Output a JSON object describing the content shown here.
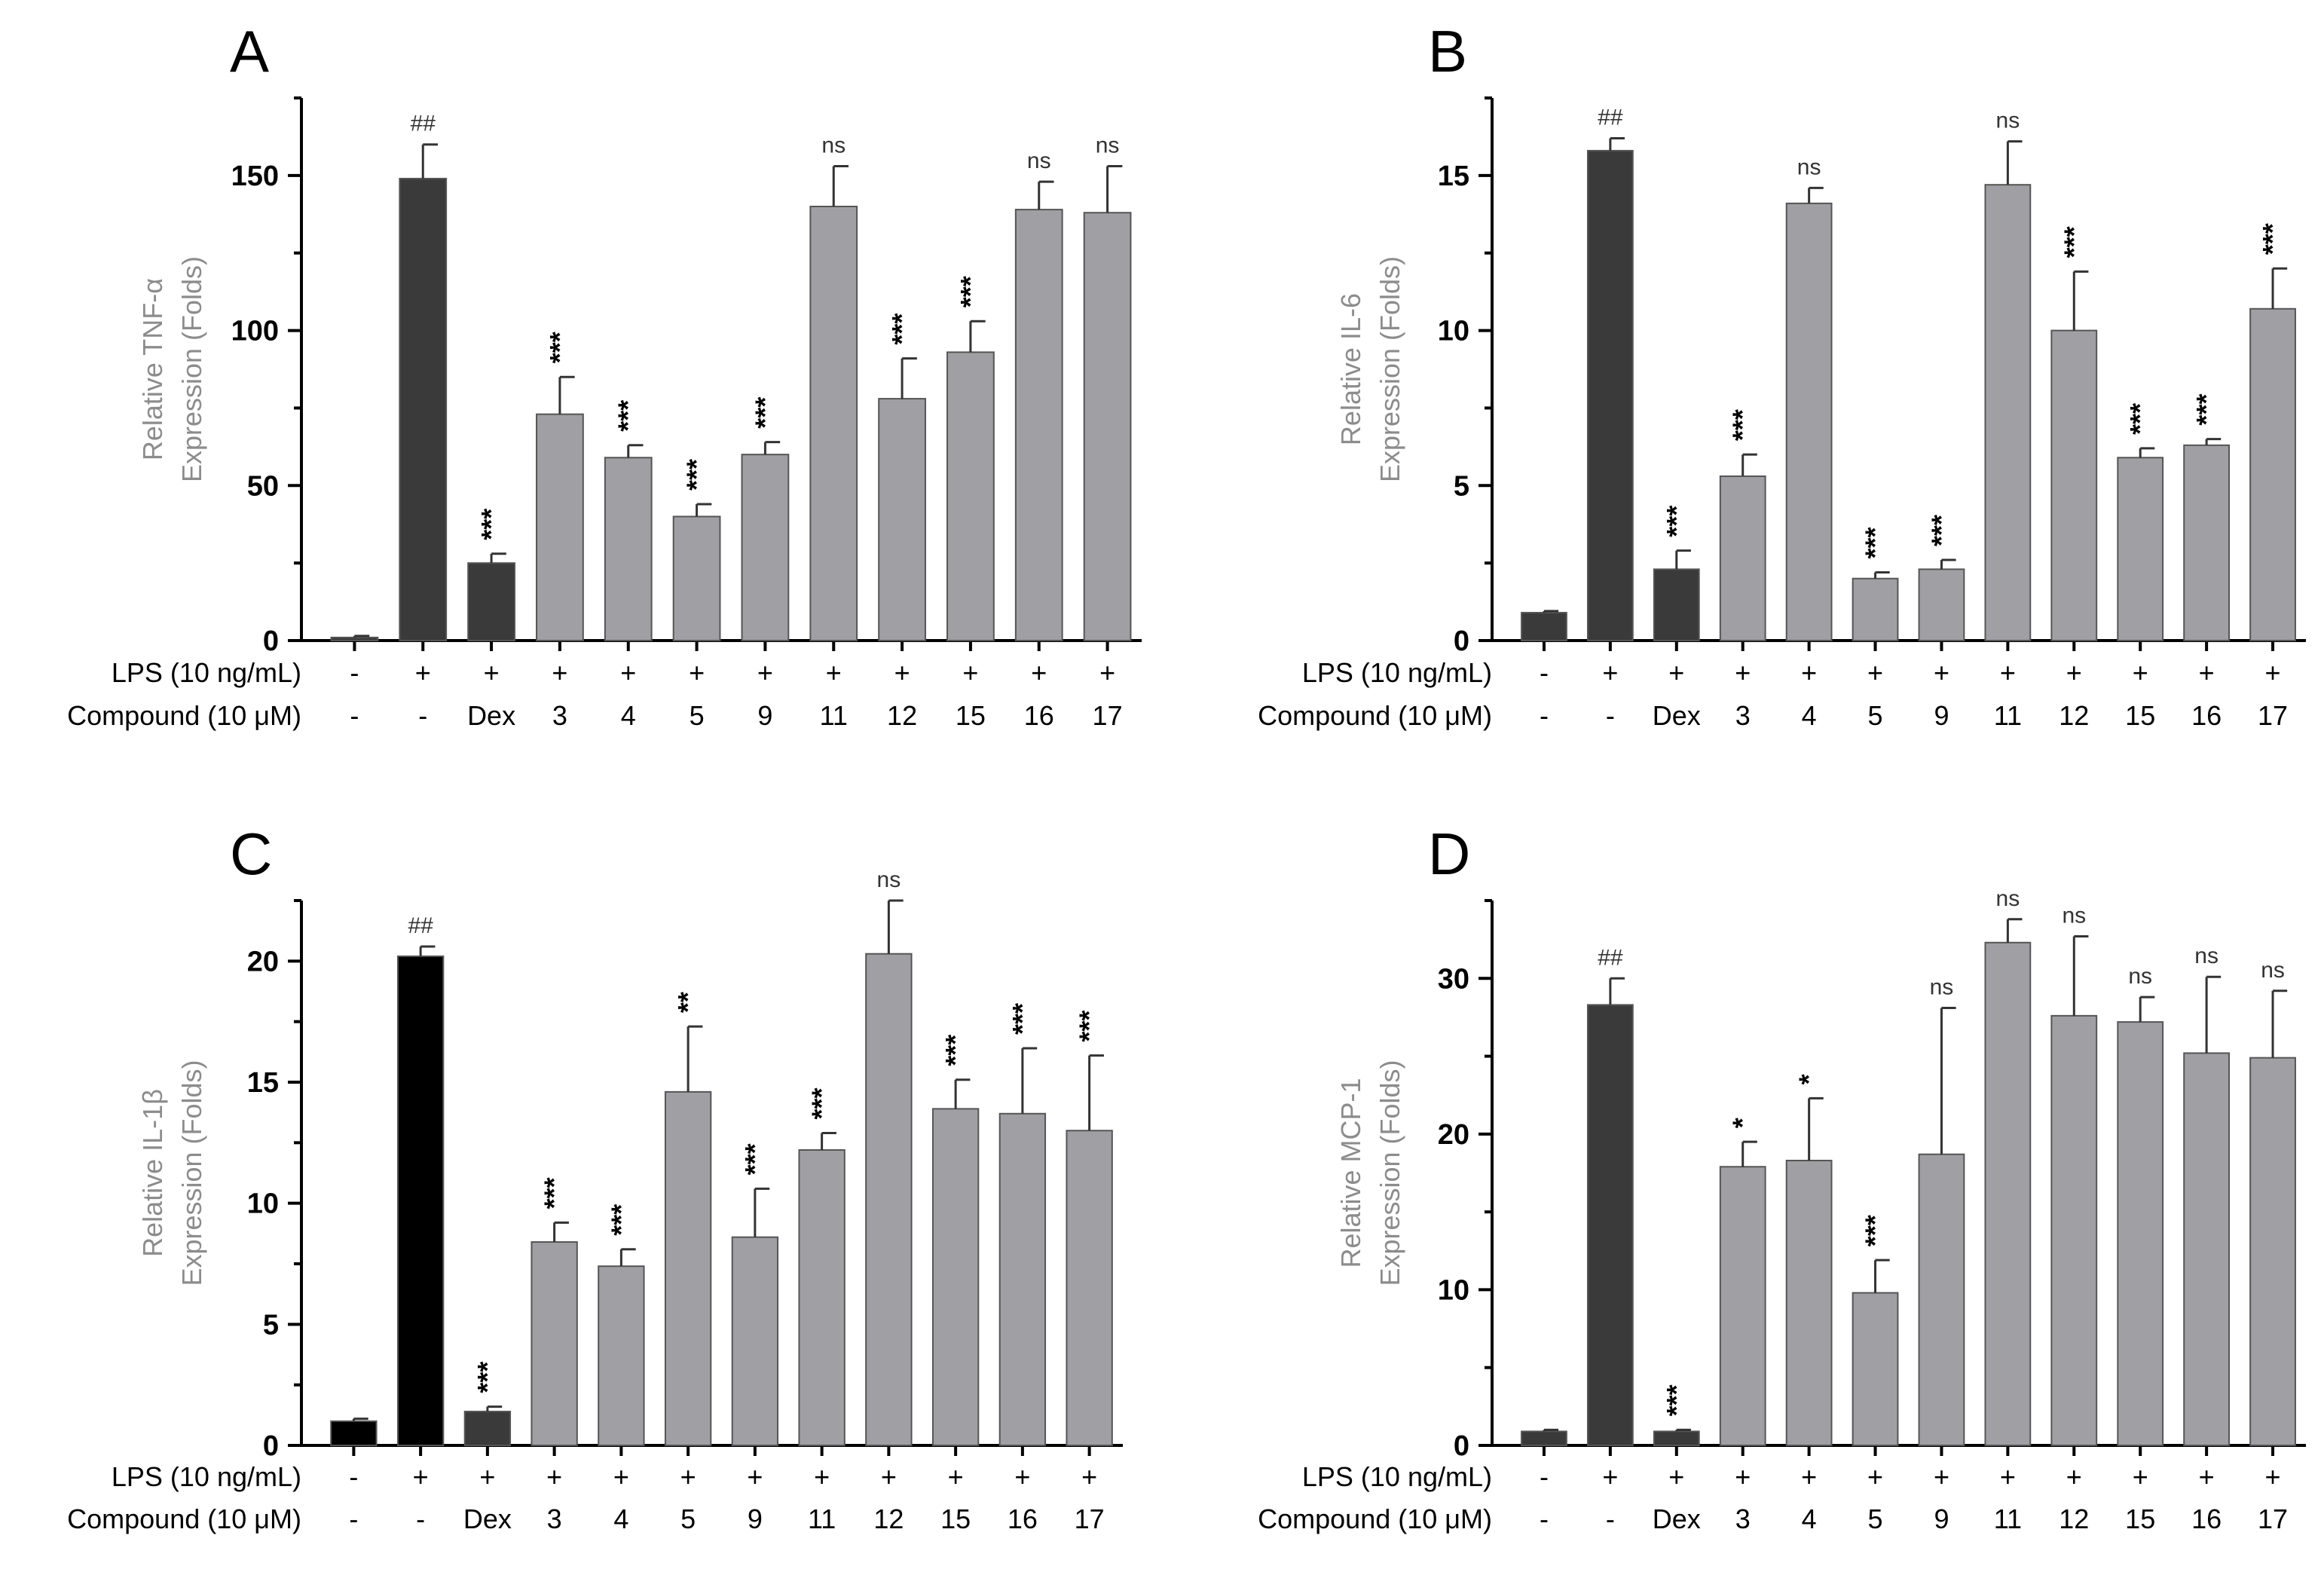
{
  "row_labels": {
    "lps": "LPS (10 ng/mL)",
    "compound": "Compound (10 μM)"
  },
  "chart_data": [
    {
      "type": "bar",
      "panel_letter": "A",
      "ylabel_line1": "Relative TNF-α",
      "ylabel_line2": "Expression (Folds)",
      "ylim": [
        0,
        175
      ],
      "yticks": [
        0,
        50,
        100,
        150
      ],
      "categories": [
        "-",
        "-",
        "Dex",
        "3",
        "4",
        "5",
        "9",
        "11",
        "12",
        "15",
        "16",
        "17"
      ],
      "lps": [
        "-",
        "+",
        "+",
        "+",
        "+",
        "+",
        "+",
        "+",
        "+",
        "+",
        "+",
        "+"
      ],
      "values": [
        1,
        149,
        25,
        73,
        59,
        40,
        60,
        140,
        78,
        93,
        139,
        138
      ],
      "errors": [
        0.5,
        11,
        3,
        12,
        4,
        4,
        4,
        13,
        13,
        10,
        9,
        15
      ],
      "annotations": [
        "",
        "##",
        "***",
        "***",
        "***",
        "***",
        "***",
        "ns",
        "***",
        "***",
        "ns",
        "ns"
      ],
      "bar_colors": [
        "#3a3a3a",
        "#3a3a3a",
        "#3a3a3a",
        "#a0a0a4",
        "#a0a0a4",
        "#a0a0a4",
        "#a0a0a4",
        "#a0a0a4",
        "#a0a0a4",
        "#a0a0a4",
        "#a0a0a4",
        "#a0a0a4"
      ]
    },
    {
      "type": "bar",
      "panel_letter": "B",
      "ylabel_line1": "Relative IL-6",
      "ylabel_line2": "Expression (Folds)",
      "ylim": [
        0,
        17.5
      ],
      "yticks": [
        0,
        5,
        10,
        15
      ],
      "categories": [
        "-",
        "-",
        "Dex",
        "3",
        "4",
        "5",
        "9",
        "11",
        "12",
        "15",
        "16",
        "17"
      ],
      "lps": [
        "-",
        "+",
        "+",
        "+",
        "+",
        "+",
        "+",
        "+",
        "+",
        "+",
        "+",
        "+"
      ],
      "values": [
        0.9,
        15.8,
        2.3,
        5.3,
        14.1,
        2.0,
        2.3,
        14.7,
        10.0,
        5.9,
        6.3,
        10.7
      ],
      "errors": [
        0.05,
        0.4,
        0.6,
        0.7,
        0.5,
        0.2,
        0.3,
        1.4,
        1.9,
        0.3,
        0.2,
        1.3
      ],
      "annotations": [
        "",
        "##",
        "***",
        "***",
        "ns",
        "***",
        "***",
        "ns",
        "***",
        "***",
        "***",
        "***"
      ],
      "bar_colors": [
        "#3a3a3a",
        "#3a3a3a",
        "#3a3a3a",
        "#a0a0a4",
        "#a0a0a4",
        "#a0a0a4",
        "#a0a0a4",
        "#a0a0a4",
        "#a0a0a4",
        "#a0a0a4",
        "#a0a0a4",
        "#a0a0a4"
      ]
    },
    {
      "type": "bar",
      "panel_letter": "C",
      "ylabel_line1": "Relative IL-1β",
      "ylabel_line2": "Expression (Folds)",
      "ylim": [
        0,
        22.5
      ],
      "yticks": [
        0,
        5,
        10,
        15,
        20
      ],
      "categories": [
        "-",
        "-",
        "Dex",
        "3",
        "4",
        "5",
        "9",
        "11",
        "12",
        "15",
        "16",
        "17"
      ],
      "lps": [
        "-",
        "+",
        "+",
        "+",
        "+",
        "+",
        "+",
        "+",
        "+",
        "+",
        "+",
        "+"
      ],
      "values": [
        1.0,
        20.2,
        1.4,
        8.4,
        7.4,
        14.6,
        8.6,
        12.2,
        20.3,
        13.9,
        13.7,
        13.0
      ],
      "errors": [
        0.1,
        0.4,
        0.2,
        0.8,
        0.7,
        2.7,
        2.0,
        0.7,
        2.2,
        1.2,
        2.7,
        3.1
      ],
      "annotations": [
        "",
        "##",
        "***",
        "***",
        "***",
        "**",
        "***",
        "***",
        "ns",
        "***",
        "***",
        "***"
      ],
      "bar_colors": [
        "#000000",
        "#000000",
        "#3a3a3a",
        "#a0a0a4",
        "#a0a0a4",
        "#a0a0a4",
        "#a0a0a4",
        "#a0a0a4",
        "#a0a0a4",
        "#a0a0a4",
        "#a0a0a4",
        "#a0a0a4"
      ]
    },
    {
      "type": "bar",
      "panel_letter": "D",
      "ylabel_line1": "Relative MCP-1",
      "ylabel_line2": "Expression (Folds)",
      "ylim": [
        0,
        35
      ],
      "yticks": [
        0,
        10,
        20,
        30
      ],
      "categories": [
        "-",
        "-",
        "Dex",
        "3",
        "4",
        "5",
        "9",
        "11",
        "12",
        "15",
        "16",
        "17"
      ],
      "lps": [
        "-",
        "+",
        "+",
        "+",
        "+",
        "+",
        "+",
        "+",
        "+",
        "+",
        "+",
        "+"
      ],
      "values": [
        0.9,
        28.3,
        0.9,
        17.9,
        18.3,
        9.8,
        18.7,
        32.3,
        27.6,
        27.2,
        25.2,
        24.9
      ],
      "errors": [
        0.1,
        1.7,
        0.1,
        1.6,
        4.0,
        2.1,
        9.4,
        1.5,
        5.1,
        1.6,
        4.9,
        4.3
      ],
      "annotations": [
        "",
        "##",
        "***",
        "*",
        "*",
        "***",
        "ns",
        "ns",
        "ns",
        "ns",
        "ns",
        "ns"
      ],
      "bar_colors": [
        "#3a3a3a",
        "#3a3a3a",
        "#3a3a3a",
        "#a0a0a4",
        "#a0a0a4",
        "#a0a0a4",
        "#a0a0a4",
        "#a0a0a4",
        "#a0a0a4",
        "#a0a0a4",
        "#a0a0a4",
        "#a0a0a4"
      ]
    }
  ],
  "colors": {
    "axis": "#000000",
    "ylabel": "#8c8c8c",
    "text": "#000000"
  }
}
